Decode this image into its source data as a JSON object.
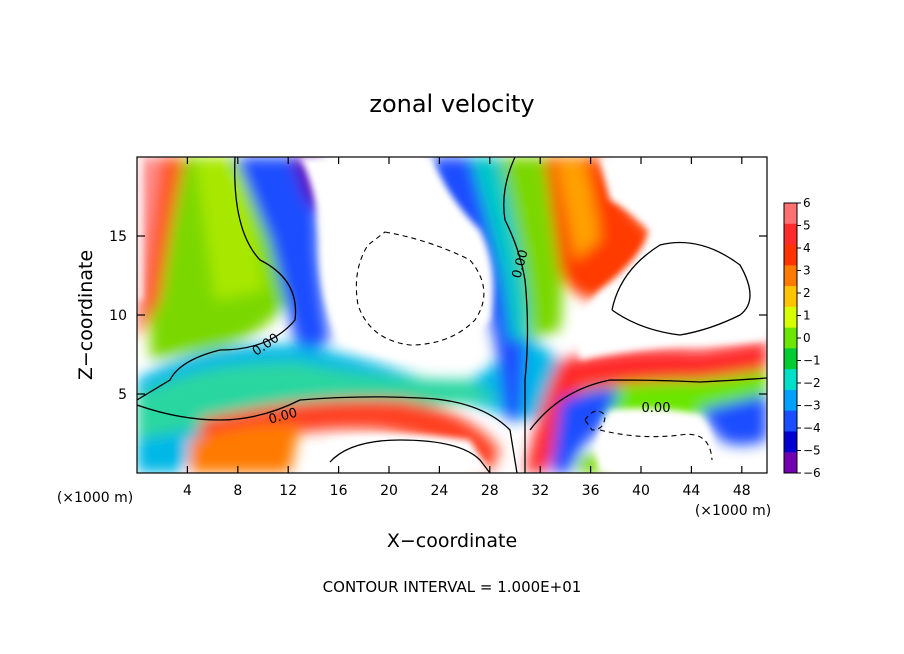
{
  "chart_data": {
    "type": "heatmap",
    "title": "zonal velocity",
    "xlabel": "X−coordinate",
    "ylabel": "Z−coordinate",
    "x_unit_left": "(×1000 m)",
    "x_unit_right": "(×1000 m)",
    "xlim": [
      0,
      50
    ],
    "ylim": [
      0,
      20
    ],
    "x_ticks": [
      4,
      8,
      12,
      16,
      20,
      24,
      28,
      32,
      36,
      40,
      44,
      48
    ],
    "y_ticks": [
      5,
      10,
      15
    ],
    "colorbar": {
      "ticks": [
        6,
        5,
        4,
        3,
        2,
        1,
        0,
        -1,
        -2,
        -3,
        -4,
        -5,
        -6
      ],
      "labels": [
        "6",
        "5",
        "4",
        "3",
        "2",
        "1",
        "0",
        "−1",
        "−2",
        "−3",
        "−4",
        "−5",
        "−6"
      ],
      "colors": [
        "#ff7070",
        "#ff2a2a",
        "#ff3300",
        "#ff7a00",
        "#ffc400",
        "#d8ff00",
        "#6ae600",
        "#00cc33",
        "#00e0c8",
        "#00a0ff",
        "#1a4dff",
        "#0000d0",
        "#7000b0"
      ]
    },
    "contour_labels": [
      "0.00",
      "0.00",
      "0.00",
      "0.00"
    ],
    "footer": "CONTOUR INTERVAL = 1.000E+01"
  }
}
